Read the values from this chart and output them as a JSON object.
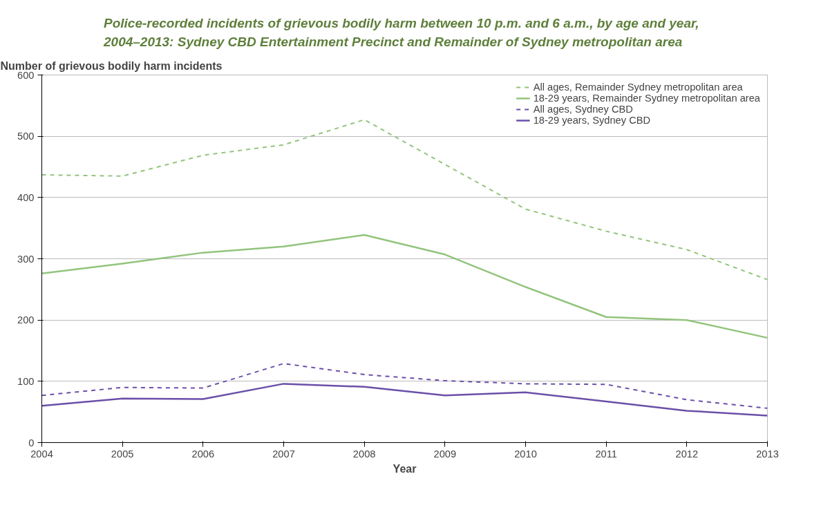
{
  "chart_data": {
    "type": "line",
    "title": "Police-recorded incidents of grievous bodily harm between 10 p.m. and 6 a.m., by age and year, 2004–2013: Sydney CBD Entertainment Precinct and Remainder of Sydney metropolitan area",
    "ylabel": "Number of grievous bodily harm incidents",
    "xlabel": "Year",
    "x": [
      2004,
      2005,
      2006,
      2007,
      2008,
      2009,
      2010,
      2011,
      2012,
      2013
    ],
    "xlim": [
      2004,
      2013
    ],
    "xticks": [
      2004,
      2005,
      2006,
      2007,
      2008,
      2009,
      2010,
      2011,
      2012,
      2013
    ],
    "ylim": [
      0,
      600
    ],
    "yticks": [
      0,
      100,
      200,
      300,
      400,
      500,
      600
    ],
    "grid": "y",
    "legend": "top right",
    "marker": "none",
    "series": [
      {
        "name": "All ages, Remainder Sydney metropolitan area",
        "color": "#92c47c",
        "line_style": "dashed",
        "values": [
          437,
          435,
          469,
          486,
          527,
          454,
          381,
          345,
          315,
          266
        ]
      },
      {
        "name": "18-29 years, Remainder Sydney metropolitan area",
        "color": "#92c47c",
        "line_style": "solid",
        "values": [
          276,
          292,
          310,
          320,
          339,
          307,
          254,
          205,
          200,
          171
        ]
      },
      {
        "name": "All ages, Sydney CBD",
        "color": "#6a4fa8",
        "line_style": "dashed",
        "values": [
          77,
          90,
          89,
          129,
          111,
          101,
          96,
          95,
          70,
          56
        ]
      },
      {
        "name": "18-29 years, Sydney CBD",
        "color": "#6a4fa8",
        "line_style": "solid",
        "values": [
          60,
          72,
          71,
          96,
          91,
          77,
          82,
          67,
          52,
          44
        ]
      }
    ]
  }
}
